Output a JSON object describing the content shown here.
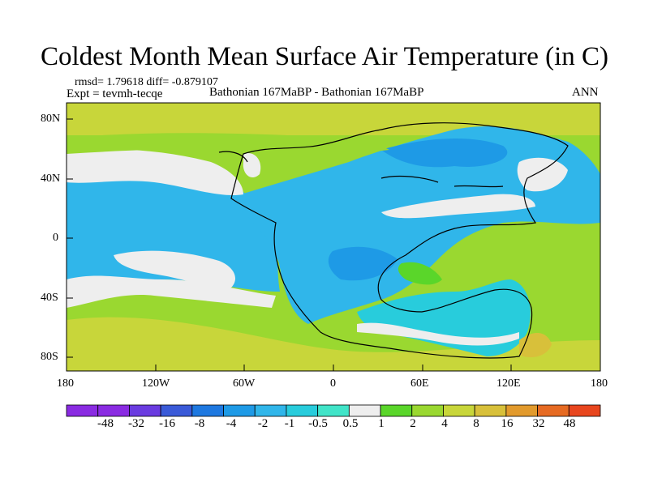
{
  "header": {
    "title": "Coldest Month Mean Surface Air Temperature (in C)",
    "stats": "rmsd= 1.79618 diff= -0.879107",
    "expt": "Expt = tevmh-tecqe",
    "comparison": "Bathonian 167MaBP - Bathonian 167MaBP",
    "period": "ANN"
  },
  "axes": {
    "lat_labels": [
      "80N",
      "40N",
      "0",
      "40S",
      "80S"
    ],
    "lon_labels": [
      "180",
      "120W",
      "60W",
      "0",
      "60E",
      "120E",
      "180"
    ]
  },
  "colorbar": {
    "labels": [
      "-48",
      "-32",
      "-16",
      "-8",
      "-4",
      "-2",
      "-1",
      "-0.5",
      "0.5",
      "1",
      "2",
      "4",
      "8",
      "16",
      "32",
      "48"
    ],
    "colors": [
      "#8a2be2",
      "#6a3be0",
      "#3a5ad8",
      "#1e78e0",
      "#1e9ae6",
      "#30b6ea",
      "#28ccdc",
      "#40e4c8",
      "#eeeeee",
      "#5ad62a",
      "#9ad830",
      "#c8d63a",
      "#d8c03a",
      "#e29a2c",
      "#e66a22",
      "#e8461e"
    ]
  },
  "colors": {
    "warm_ocean": "#9ad830",
    "polar": "#c8d63a",
    "cool": "#30b6ea",
    "cold": "#1e9ae6",
    "neutral": "#eeeeee",
    "lime": "#5ad62a",
    "teal": "#28ccdc"
  }
}
